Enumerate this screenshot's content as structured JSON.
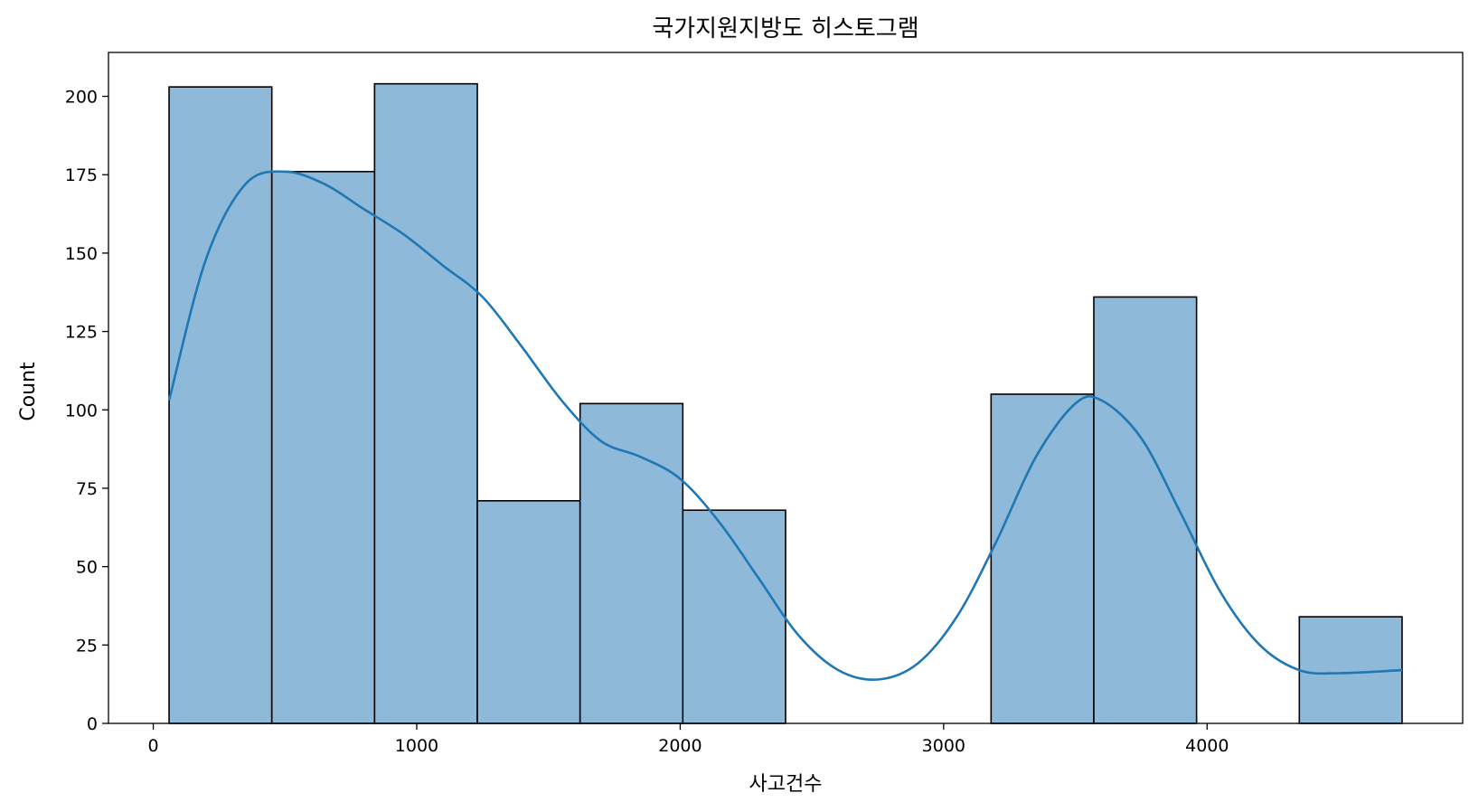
{
  "chart_data": {
    "type": "bar",
    "subtype": "histogram",
    "title": "국가지원지방도 히스토그램",
    "xlabel": "사고건수",
    "ylabel": "Count",
    "xlim": [
      -170,
      4970
    ],
    "ylim": [
      0,
      214
    ],
    "xticks": [
      0,
      1000,
      2000,
      3000,
      4000
    ],
    "yticks": [
      0,
      25,
      50,
      75,
      100,
      125,
      150,
      175,
      200
    ],
    "grid": false,
    "bins": [
      {
        "start": 60,
        "end": 450,
        "count": 203
      },
      {
        "start": 450,
        "end": 840,
        "count": 176
      },
      {
        "start": 840,
        "end": 1230,
        "count": 204
      },
      {
        "start": 1230,
        "end": 1620,
        "count": 71
      },
      {
        "start": 1620,
        "end": 2010,
        "count": 102
      },
      {
        "start": 2010,
        "end": 2400,
        "count": 68
      },
      {
        "start": 2400,
        "end": 2790,
        "count": 0
      },
      {
        "start": 2790,
        "end": 3180,
        "count": 0
      },
      {
        "start": 3180,
        "end": 3570,
        "count": 105
      },
      {
        "start": 3570,
        "end": 3960,
        "count": 136
      },
      {
        "start": 3960,
        "end": 4350,
        "count": 0
      },
      {
        "start": 4350,
        "end": 4740,
        "count": 34
      }
    ],
    "kde": {
      "x": [
        60,
        200,
        350,
        500,
        650,
        800,
        950,
        1100,
        1250,
        1400,
        1550,
        1700,
        1850,
        2000,
        2150,
        2300,
        2450,
        2600,
        2750,
        2900,
        3050,
        3200,
        3350,
        3500,
        3600,
        3750,
        3900,
        4050,
        4200,
        4350,
        4500,
        4740
      ],
      "y": [
        103,
        148,
        172,
        176,
        172,
        164,
        156,
        146,
        136,
        120,
        103,
        90,
        85,
        78,
        64,
        46,
        28,
        17,
        14,
        19,
        34,
        58,
        85,
        102,
        103,
        91,
        67,
        42,
        25,
        17,
        16,
        17
      ]
    },
    "colors": {
      "bar_fill": "#8fb9d9",
      "bar_edge": "#000000",
      "kde_line": "#1f77b4"
    }
  }
}
